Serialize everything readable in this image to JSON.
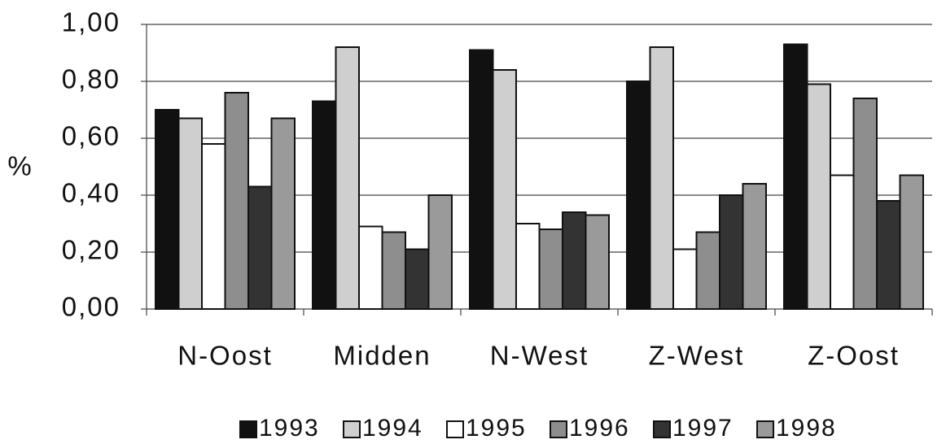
{
  "chart_data": {
    "type": "bar",
    "y_label": "%",
    "categories": [
      "N-Oost",
      "Midden",
      "N-West",
      "Z-West",
      "Z-Oost"
    ],
    "series": [
      {
        "name": "1993",
        "color": "#111111",
        "values": [
          0.7,
          0.73,
          0.91,
          0.8,
          0.93
        ]
      },
      {
        "name": "1994",
        "color": "#cfcfcf",
        "values": [
          0.67,
          0.92,
          0.84,
          0.92,
          0.79
        ]
      },
      {
        "name": "1995",
        "color": "#ffffff",
        "values": [
          0.58,
          0.29,
          0.3,
          0.21,
          0.47
        ]
      },
      {
        "name": "1996",
        "color": "#8e8e8e",
        "values": [
          0.76,
          0.27,
          0.28,
          0.27,
          0.74
        ]
      },
      {
        "name": "1997",
        "color": "#333333",
        "values": [
          0.43,
          0.21,
          0.34,
          0.4,
          0.38
        ]
      },
      {
        "name": "1998",
        "color": "#9a9a9a",
        "values": [
          0.67,
          0.4,
          0.33,
          0.44,
          0.47
        ]
      }
    ],
    "ylim": [
      0,
      1
    ],
    "yticks": [
      {
        "value": 0,
        "label": "0,00"
      },
      {
        "value": 0.2,
        "label": "0,20"
      },
      {
        "value": 0.4,
        "label": "0,40"
      },
      {
        "value": 0.6,
        "label": "0,60"
      },
      {
        "value": 0.8,
        "label": "0,80"
      },
      {
        "value": 1,
        "label": "1,00"
      }
    ],
    "grid": true
  }
}
